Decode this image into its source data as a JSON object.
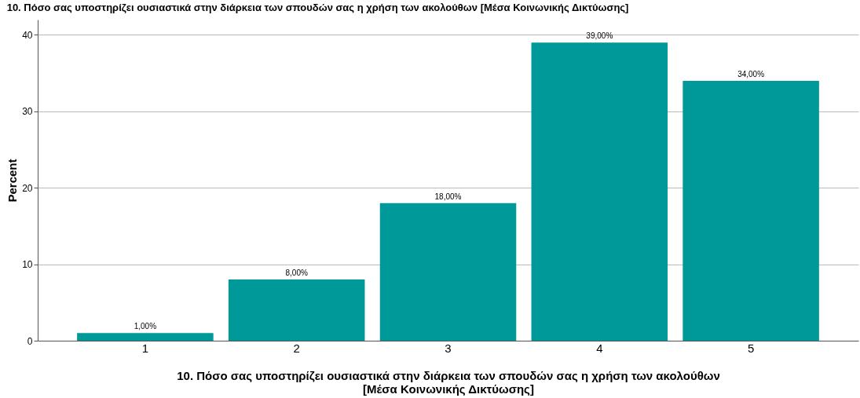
{
  "chart_data": {
    "type": "bar",
    "title": "10. Πόσο σας υποστηρίζει ουσιαστικά στην διάρκεια των σπουδών σας η χρήση των ακολούθων [Μέσα Κοινωνικής Δικτύωσης]",
    "xlabel": "10. Πόσο σας υποστηρίζει ουσιαστικά στην διάρκεια των σπουδών σας η χρήση των ακολούθων [Μέσα Κοινωνικής Δικτύωσης]",
    "ylabel": "Percent",
    "categories": [
      "1",
      "2",
      "3",
      "4",
      "5"
    ],
    "values": [
      1,
      8,
      18,
      39,
      34
    ],
    "value_labels": [
      "1,00%",
      "8,00%",
      "18,00%",
      "39,00%",
      "34,00%"
    ],
    "color": "#009999",
    "ylim": [
      0,
      42
    ],
    "yticks": [
      0,
      10,
      20,
      30,
      40
    ],
    "grid": "y"
  }
}
